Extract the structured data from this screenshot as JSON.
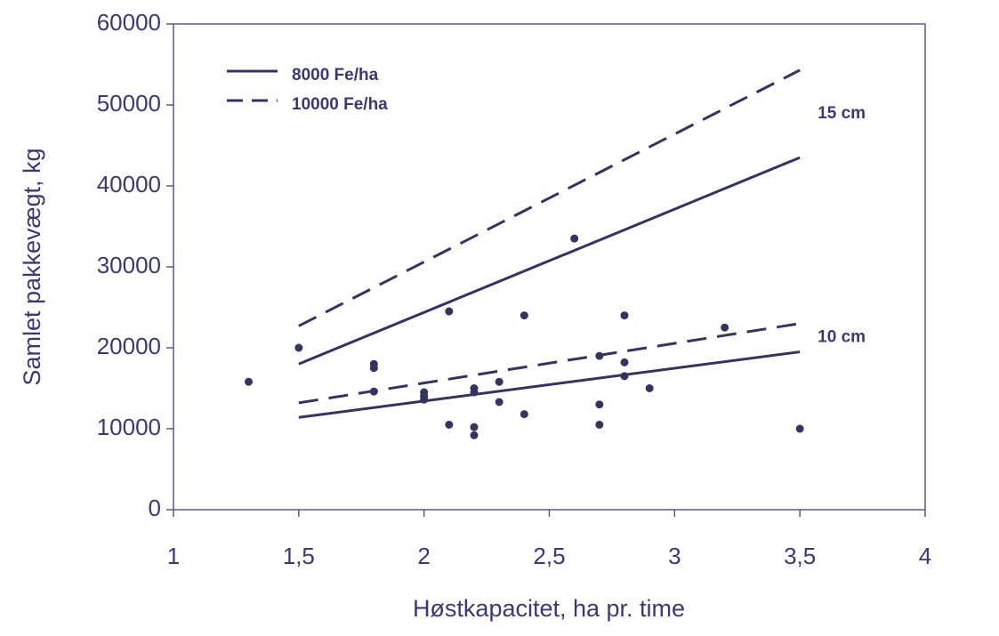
{
  "chart_data": {
    "type": "scatter",
    "xlabel": "Høstkapacitet, ha pr. time",
    "ylabel": "Samlet pakkevægt, kg",
    "xlim": [
      1,
      4
    ],
    "xticks": [
      1,
      {
        "value": 1.5,
        "label": "1,5"
      },
      2,
      {
        "value": 2.5,
        "label": "2,5"
      },
      3,
      {
        "value": 3.5,
        "label": "3,5"
      },
      4
    ],
    "ylim": [
      0,
      60000
    ],
    "yticks": [
      0,
      10000,
      20000,
      30000,
      40000,
      50000,
      60000
    ],
    "legend": "upper left",
    "series": [
      {
        "name": "8000 Fe/ha",
        "color": "#34345e",
        "dashed": false,
        "x": [
          1.5,
          3.5
        ],
        "lines": [
          [
            18000,
            43500
          ],
          [
            11400,
            19500
          ]
        ]
      },
      {
        "name": "10000 Fe/ha",
        "color": "#34345e",
        "dashed": true,
        "x": [
          1.5,
          3.5
        ],
        "lines": [
          [
            22700,
            54300
          ],
          [
            13200,
            23000
          ]
        ]
      }
    ],
    "annotations": [
      "15 cm",
      "10 cm"
    ],
    "points": {
      "color": "#34345e",
      "x": [
        1.3,
        1.5,
        1.8,
        1.8,
        1.8,
        2.0,
        2.0,
        2.0,
        2.1,
        2.1,
        2.2,
        2.2,
        2.2,
        2.2,
        2.3,
        2.3,
        2.4,
        2.4,
        2.6,
        2.7,
        2.7,
        2.7,
        2.8,
        2.8,
        2.8,
        2.9,
        3.2,
        3.5
      ],
      "values": [
        15800,
        20000,
        17500,
        18000,
        14600,
        14500,
        14000,
        13600,
        24500,
        10500,
        15000,
        14500,
        10200,
        9200,
        15800,
        13300,
        24000,
        11800,
        33500,
        19000,
        13000,
        10500,
        24000,
        18200,
        16500,
        15000,
        22500,
        10000
      ]
    }
  }
}
